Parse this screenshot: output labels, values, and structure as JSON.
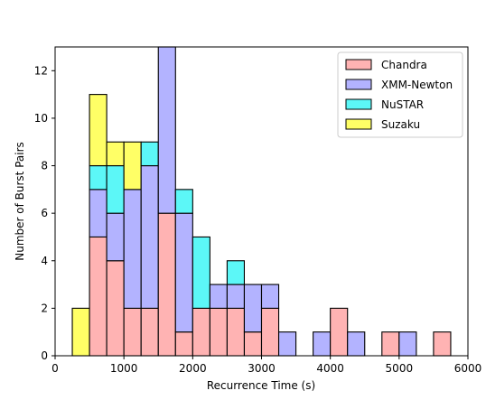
{
  "chart_data": {
    "type": "bar",
    "stacked": true,
    "histogram": true,
    "title": "",
    "xlabel": "Recurrence Time (s)",
    "ylabel": "Number of Burst Pairs",
    "xlim": [
      0,
      6000
    ],
    "ylim": [
      0,
      13
    ],
    "xticks": [
      0,
      1000,
      2000,
      3000,
      4000,
      5000,
      6000
    ],
    "yticks": [
      0,
      2,
      4,
      6,
      8,
      10,
      12
    ],
    "grid": false,
    "legend_position": "top-right",
    "bin_width": 250,
    "bin_starts": [
      250,
      500,
      750,
      1000,
      1250,
      1500,
      1750,
      2000,
      2250,
      2500,
      2750,
      3000,
      3250,
      3500,
      3750,
      4000,
      4250,
      4500,
      4750,
      5000,
      5250,
      5500
    ],
    "series": [
      {
        "name": "Chandra",
        "color": "#ffb3b3",
        "values": [
          0,
          5,
          4,
          2,
          2,
          6,
          1,
          2,
          2,
          2,
          1,
          2,
          0,
          0,
          0,
          2,
          0,
          0,
          1,
          0,
          0,
          1
        ]
      },
      {
        "name": "XMM-Newton",
        "color": "#b3b3ff",
        "values": [
          0,
          2,
          2,
          5,
          6,
          7,
          5,
          0,
          1,
          1,
          2,
          1,
          1,
          0,
          1,
          0,
          1,
          0,
          0,
          1,
          0,
          0
        ]
      },
      {
        "name": "NuSTAR",
        "color": "#5cf7f7",
        "values": [
          0,
          1,
          2,
          0,
          1,
          0,
          1,
          3,
          0,
          1,
          0,
          0,
          0,
          0,
          0,
          0,
          0,
          0,
          0,
          0,
          0,
          0
        ]
      },
      {
        "name": "Suzaku",
        "color": "#ffff66",
        "values": [
          2,
          3,
          1,
          2,
          0,
          0,
          0,
          0,
          0,
          0,
          0,
          0,
          0,
          0,
          0,
          0,
          0,
          0,
          0,
          0,
          0,
          0
        ]
      }
    ]
  }
}
